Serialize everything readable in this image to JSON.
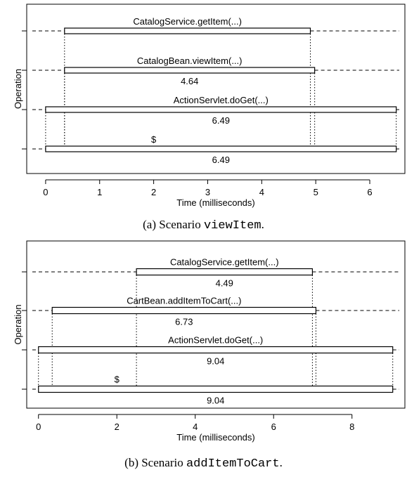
{
  "chart_data": [
    {
      "type": "gantt",
      "xlabel": "Time (milliseconds)",
      "ylabel": "Operation",
      "xlim": [
        -0.35,
        6.65
      ],
      "xticks": [
        0,
        1,
        2,
        3,
        4,
        5,
        6
      ],
      "operations": [
        {
          "name": "CatalogService.getItem(...)",
          "start": 0.35,
          "end": 4.9,
          "value_label": ""
        },
        {
          "name": "CatalogBean.viewItem(...)",
          "start": 0.35,
          "end": 4.98,
          "value_label": "4.64"
        },
        {
          "name": "ActionServlet.doGet(...)",
          "start": 0.0,
          "end": 6.49,
          "value_label": "6.49"
        },
        {
          "name": "$",
          "start": 0.0,
          "end": 6.49,
          "value_label": "6.49"
        }
      ]
    },
    {
      "type": "gantt",
      "xlabel": "Time (milliseconds)",
      "ylabel": "Operation",
      "xlim": [
        -0.3,
        9.35
      ],
      "xticks": [
        0,
        2,
        4,
        6,
        8
      ],
      "operations": [
        {
          "name": "CatalogService.getItem(...)",
          "start": 2.5,
          "end": 6.99,
          "value_label": "4.49"
        },
        {
          "name": "CartBean.addItemToCart(...)",
          "start": 0.35,
          "end": 7.08,
          "value_label": "6.73"
        },
        {
          "name": "ActionServlet.doGet(...)",
          "start": 0.0,
          "end": 9.04,
          "value_label": "9.04"
        },
        {
          "name": "$",
          "start": 0.0,
          "end": 9.04,
          "value_label": "9.04"
        }
      ]
    }
  ],
  "captions": {
    "a": {
      "prefix": "(a)  Scenario ",
      "code": "viewItem",
      "suffix": "."
    },
    "b": {
      "prefix": "(b)  Scenario ",
      "code": "addItemToCart",
      "suffix": "."
    }
  }
}
